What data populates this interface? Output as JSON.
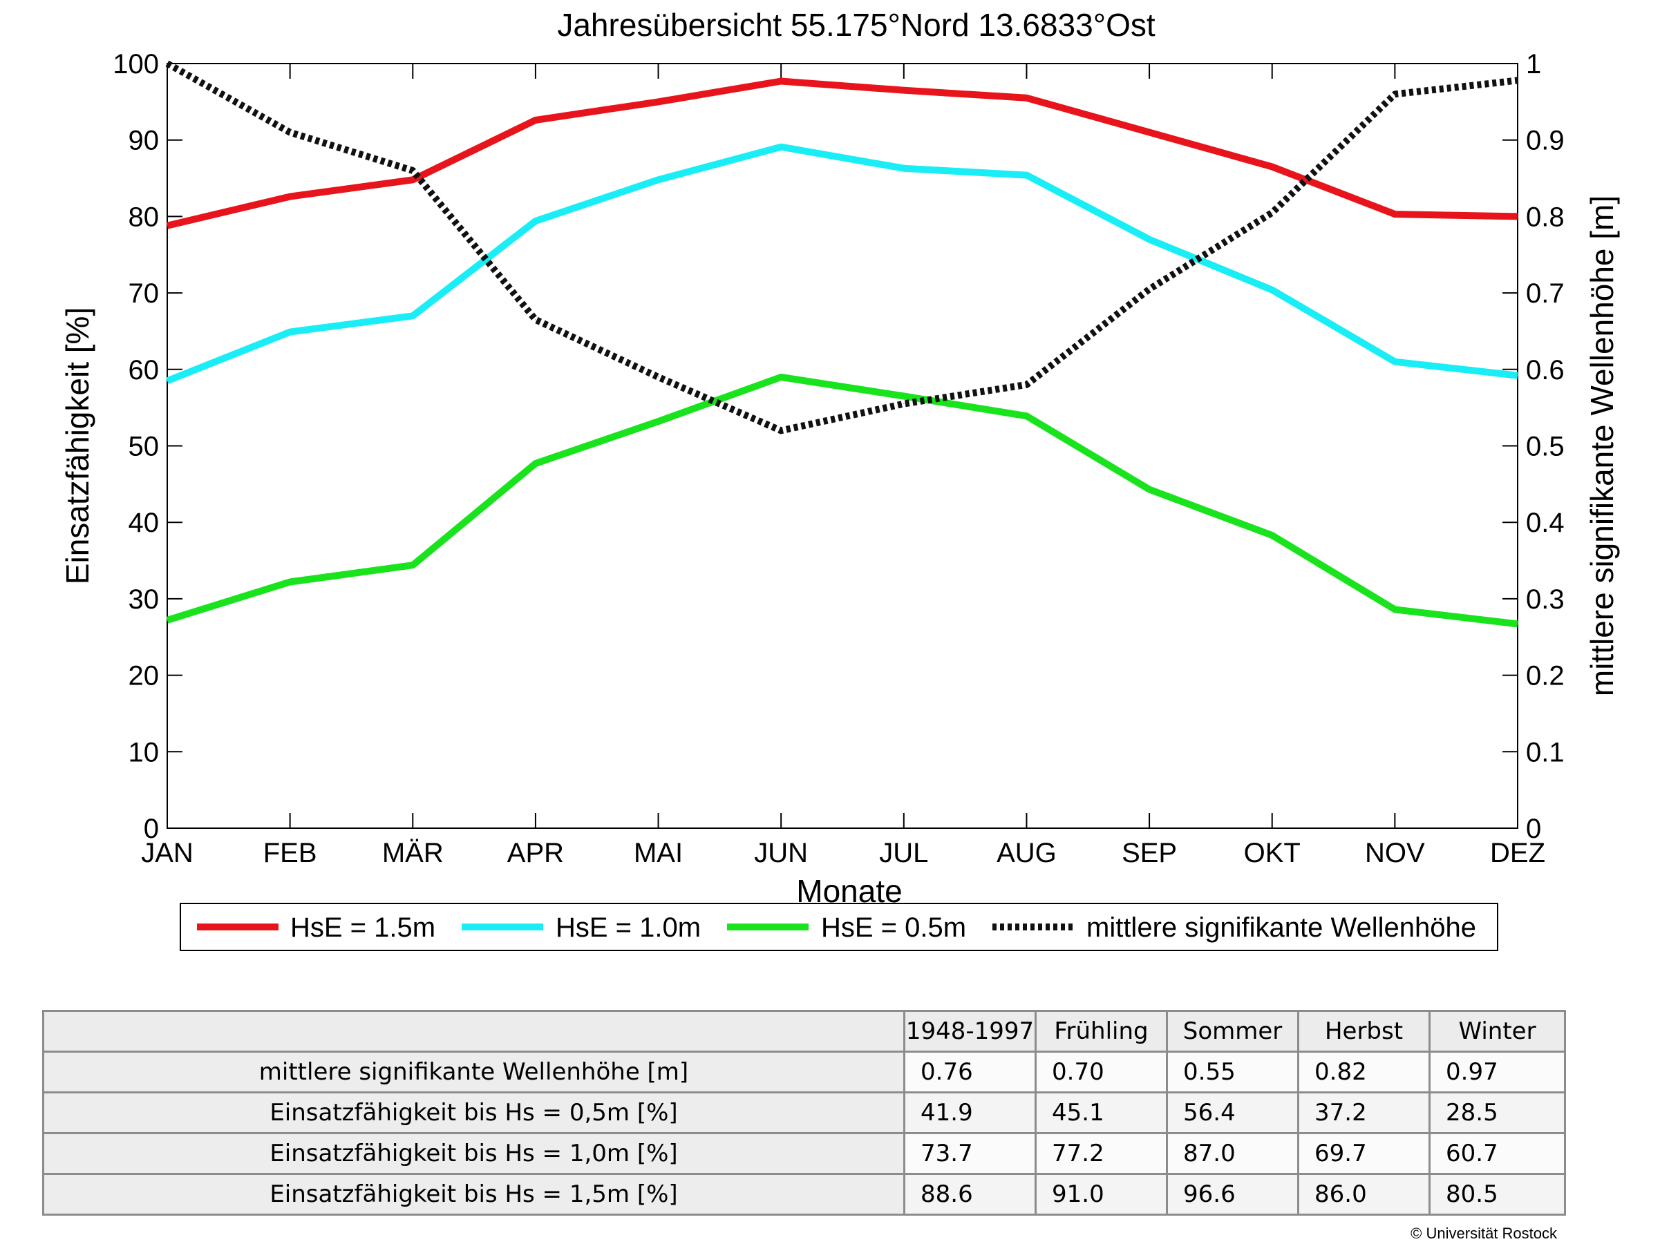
{
  "chart_data": {
    "type": "line",
    "title": "Jahresübersicht  55.175°Nord  13.6833°Ost",
    "xlabel": "Monate",
    "ylabel": "Einsatzfähigkeit [%]",
    "y2label": "mittlere signifikante Wellenhöhe [m]",
    "categories": [
      "JAN",
      "FEB",
      "MÄR",
      "APR",
      "MAI",
      "JUN",
      "JUL",
      "AUG",
      "SEP",
      "OKT",
      "NOV",
      "DEZ"
    ],
    "ylim": [
      0,
      100
    ],
    "yticks": [
      "0",
      "10",
      "20",
      "30",
      "40",
      "50",
      "60",
      "70",
      "80",
      "90",
      "100"
    ],
    "y2lim": [
      0,
      1
    ],
    "y2ticks": [
      "0",
      "0.1",
      "0.2",
      "0.3",
      "0.4",
      "0.5",
      "0.6",
      "0.7",
      "0.8",
      "0.9",
      "1"
    ],
    "grid": false,
    "legend_position": "bottom",
    "series": [
      {
        "name": "HsE = 1.5m",
        "axis": "left",
        "color": "#e8141b",
        "style": "solid",
        "values": [
          78.8,
          82.6,
          84.8,
          92.6,
          95.0,
          97.7,
          96.5,
          95.5,
          91.0,
          86.5,
          80.3,
          80.0
        ]
      },
      {
        "name": "HsE = 1.0m",
        "axis": "left",
        "color": "#19edf5",
        "style": "solid",
        "values": [
          58.5,
          64.9,
          67.0,
          79.4,
          84.8,
          89.1,
          86.3,
          85.4,
          77.0,
          70.4,
          61.0,
          59.2
        ]
      },
      {
        "name": "HsE = 0.5m",
        "axis": "left",
        "color": "#19e31c",
        "style": "solid",
        "values": [
          27.2,
          32.2,
          34.4,
          47.7,
          53.2,
          59.0,
          56.5,
          53.9,
          44.3,
          38.3,
          28.6,
          26.7
        ]
      },
      {
        "name": "mittlere signifikante Wellenhöhe",
        "axis": "right",
        "color": "#111111",
        "style": "dotted",
        "values": [
          1.0,
          0.91,
          0.86,
          0.665,
          0.59,
          0.52,
          0.555,
          0.58,
          0.705,
          0.805,
          0.96,
          0.978
        ]
      }
    ]
  },
  "table": {
    "columns": [
      "1948-1997",
      "Frühling",
      "Sommer",
      "Herbst",
      "Winter"
    ],
    "rows": [
      {
        "label": "mittlere signifikante Wellenhöhe [m]",
        "values": [
          "0.76",
          "0.70",
          "0.55",
          "0.82",
          "0.97"
        ]
      },
      {
        "label": "Einsatzfähigkeit bis Hs = 0,5m [%]",
        "values": [
          "41.9",
          "45.1",
          "56.4",
          "37.2",
          "28.5"
        ]
      },
      {
        "label": "Einsatzfähigkeit bis Hs = 1,0m [%]",
        "values": [
          "73.7",
          "77.2",
          "87.0",
          "69.7",
          "60.7"
        ]
      },
      {
        "label": "Einsatzfähigkeit bis Hs = 1,5m [%]",
        "values": [
          "88.6",
          "91.0",
          "96.6",
          "86.0",
          "80.5"
        ]
      }
    ]
  },
  "copyright": "© Universität Rostock"
}
